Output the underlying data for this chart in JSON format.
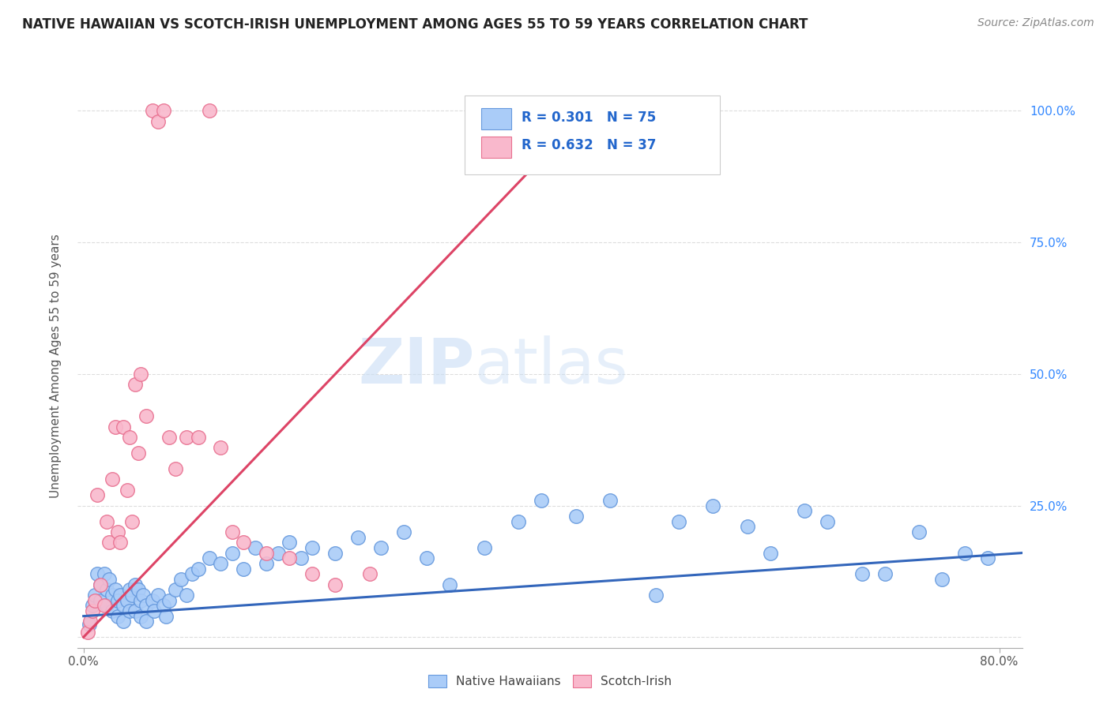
{
  "title": "NATIVE HAWAIIAN VS SCOTCH-IRISH UNEMPLOYMENT AMONG AGES 55 TO 59 YEARS CORRELATION CHART",
  "source": "Source: ZipAtlas.com",
  "ylabel": "Unemployment Among Ages 55 to 59 years",
  "xlim": [
    -0.005,
    0.82
  ],
  "ylim": [
    -0.02,
    1.05
  ],
  "x_ticks": [
    0.0,
    0.8
  ],
  "x_tick_labels": [
    "0.0%",
    "80.0%"
  ],
  "y_ticks": [
    0.0,
    0.25,
    0.5,
    0.75,
    1.0
  ],
  "y_tick_labels": [
    "",
    "25.0%",
    "50.0%",
    "75.0%",
    "100.0%"
  ],
  "blue_color": "#aaccf8",
  "pink_color": "#f9b8cc",
  "blue_edge_color": "#6699dd",
  "pink_edge_color": "#e87090",
  "blue_line_color": "#3366bb",
  "pink_line_color": "#dd4466",
  "R_blue": 0.301,
  "N_blue": 75,
  "R_pink": 0.632,
  "N_pink": 37,
  "legend_label_blue": "Native Hawaiians",
  "legend_label_pink": "Scotch-Irish",
  "watermark_zip": "ZIP",
  "watermark_atlas": "atlas",
  "title_fontsize": 12,
  "source_fontsize": 10,
  "blue_scatter_x": [
    0.005,
    0.008,
    0.01,
    0.012,
    0.015,
    0.015,
    0.018,
    0.02,
    0.02,
    0.022,
    0.025,
    0.025,
    0.028,
    0.03,
    0.03,
    0.032,
    0.035,
    0.035,
    0.038,
    0.04,
    0.04,
    0.042,
    0.045,
    0.045,
    0.048,
    0.05,
    0.05,
    0.052,
    0.055,
    0.055,
    0.06,
    0.062,
    0.065,
    0.07,
    0.072,
    0.075,
    0.08,
    0.085,
    0.09,
    0.095,
    0.1,
    0.11,
    0.12,
    0.13,
    0.14,
    0.15,
    0.16,
    0.17,
    0.18,
    0.19,
    0.2,
    0.22,
    0.24,
    0.26,
    0.28,
    0.3,
    0.32,
    0.35,
    0.38,
    0.4,
    0.43,
    0.46,
    0.5,
    0.52,
    0.55,
    0.58,
    0.6,
    0.63,
    0.65,
    0.68,
    0.7,
    0.73,
    0.75,
    0.77,
    0.79
  ],
  "blue_scatter_y": [
    0.025,
    0.06,
    0.08,
    0.12,
    0.1,
    0.07,
    0.12,
    0.09,
    0.06,
    0.11,
    0.08,
    0.05,
    0.09,
    0.07,
    0.04,
    0.08,
    0.06,
    0.03,
    0.07,
    0.09,
    0.05,
    0.08,
    0.1,
    0.05,
    0.09,
    0.07,
    0.04,
    0.08,
    0.06,
    0.03,
    0.07,
    0.05,
    0.08,
    0.06,
    0.04,
    0.07,
    0.09,
    0.11,
    0.08,
    0.12,
    0.13,
    0.15,
    0.14,
    0.16,
    0.13,
    0.17,
    0.14,
    0.16,
    0.18,
    0.15,
    0.17,
    0.16,
    0.19,
    0.17,
    0.2,
    0.15,
    0.1,
    0.17,
    0.22,
    0.26,
    0.23,
    0.26,
    0.08,
    0.22,
    0.25,
    0.21,
    0.16,
    0.24,
    0.22,
    0.12,
    0.12,
    0.2,
    0.11,
    0.16,
    0.15
  ],
  "pink_scatter_x": [
    0.004,
    0.006,
    0.008,
    0.01,
    0.012,
    0.015,
    0.018,
    0.02,
    0.022,
    0.025,
    0.028,
    0.03,
    0.032,
    0.035,
    0.038,
    0.04,
    0.042,
    0.045,
    0.048,
    0.05,
    0.055,
    0.06,
    0.065,
    0.07,
    0.075,
    0.08,
    0.09,
    0.1,
    0.11,
    0.12,
    0.13,
    0.14,
    0.16,
    0.18,
    0.2,
    0.22,
    0.25
  ],
  "pink_scatter_y": [
    0.01,
    0.03,
    0.05,
    0.07,
    0.27,
    0.1,
    0.06,
    0.22,
    0.18,
    0.3,
    0.4,
    0.2,
    0.18,
    0.4,
    0.28,
    0.38,
    0.22,
    0.48,
    0.35,
    0.5,
    0.42,
    1.0,
    0.98,
    1.0,
    0.38,
    0.32,
    0.38,
    0.38,
    1.0,
    0.36,
    0.2,
    0.18,
    0.16,
    0.15,
    0.12,
    0.1,
    0.12
  ],
  "blue_trend_x": [
    0.0,
    0.82
  ],
  "blue_trend_y": [
    0.04,
    0.16
  ],
  "pink_trend_x": [
    0.0,
    0.44
  ],
  "pink_trend_y": [
    0.0,
    1.0
  ],
  "grid_color": "#dddddd",
  "grid_style": "--"
}
